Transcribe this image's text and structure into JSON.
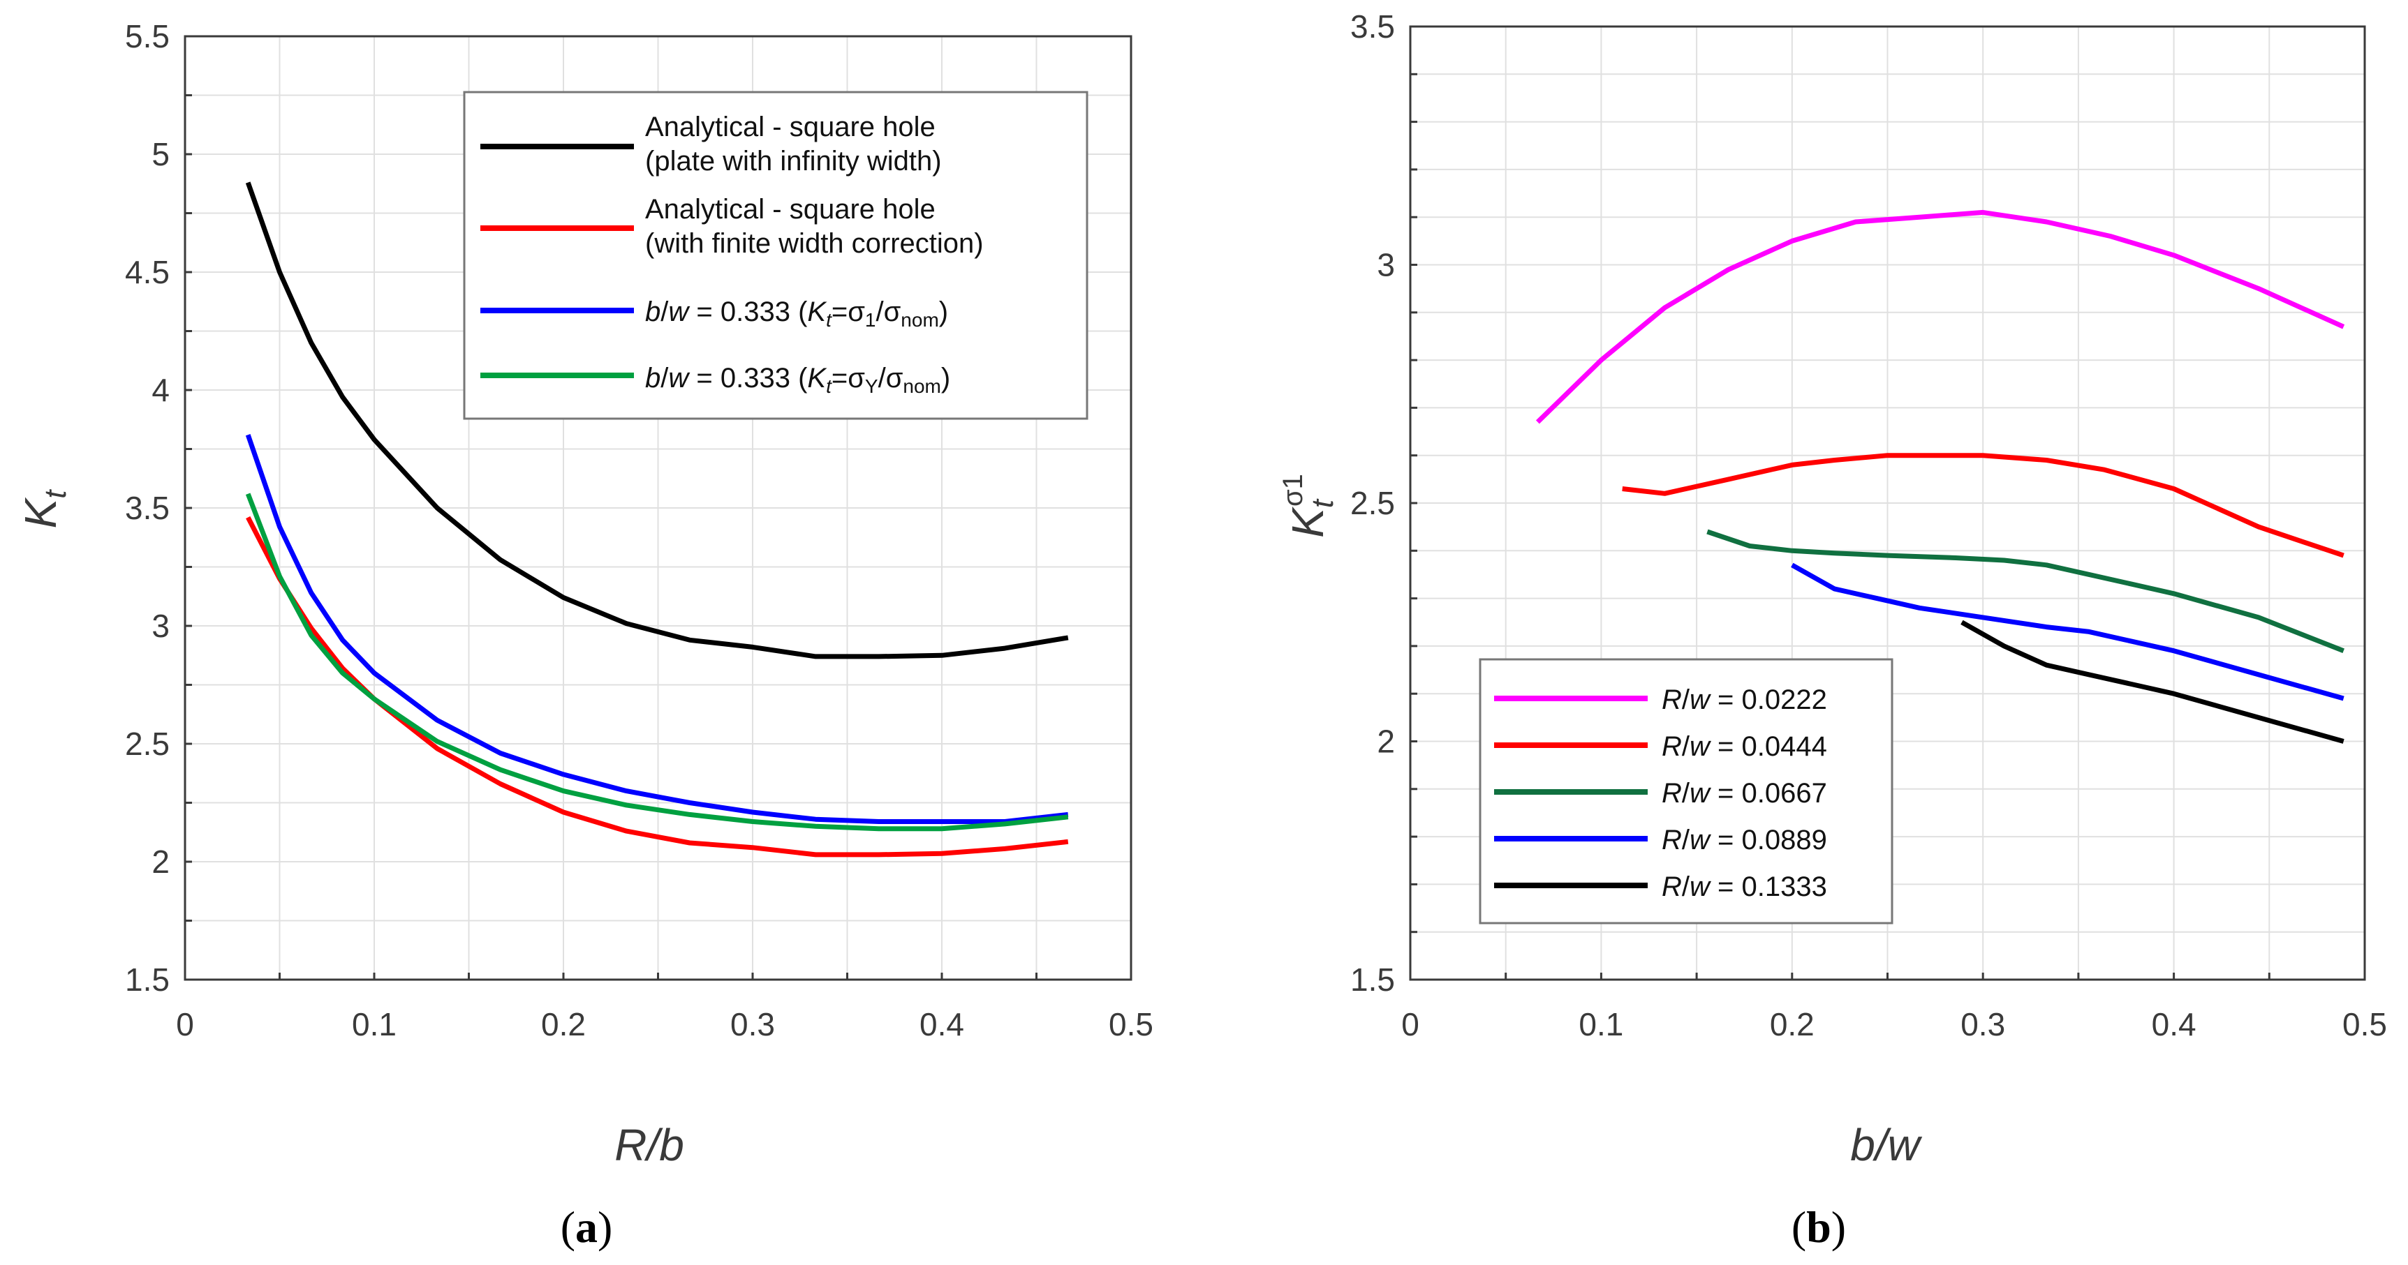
{
  "chart_data": [
    {
      "id": "a",
      "type": "line",
      "caption": "a",
      "xlabel": "R/b",
      "ylabel": "K_t",
      "xlim": [
        0,
        0.5
      ],
      "ylim": [
        1.5,
        5.5
      ],
      "x_ticks": [
        "0",
        "0.1",
        "0.2",
        "0.3",
        "0.4",
        "0.5"
      ],
      "y_ticks": [
        "1.5",
        "2",
        "2.5",
        "3",
        "3.5",
        "4",
        "4.5",
        "5",
        "5.5"
      ],
      "grid": true,
      "legend_position": "top-right",
      "series": [
        {
          "name": "Analytical - square hole (plate with infinity width)",
          "legend_lines": [
            "Analytical - square hole",
            "(plate with infinity width)"
          ],
          "color": "#000000",
          "x": [
            0.0333,
            0.05,
            0.0667,
            0.0833,
            0.1,
            0.1333,
            0.1667,
            0.2,
            0.2333,
            0.2667,
            0.3,
            0.3333,
            0.3667,
            0.4,
            0.4333,
            0.4667
          ],
          "y": [
            4.88,
            4.5,
            4.2,
            3.97,
            3.79,
            3.5,
            3.28,
            3.12,
            3.01,
            2.94,
            2.91,
            2.87,
            2.87,
            2.875,
            2.905,
            2.95
          ]
        },
        {
          "name": "Analytical - square hole (with finite width correction)",
          "legend_lines": [
            "Analytical - square hole",
            "(with finite width correction)"
          ],
          "color": "#ff0000",
          "x": [
            0.0333,
            0.05,
            0.0667,
            0.0833,
            0.1,
            0.1333,
            0.1667,
            0.2,
            0.2333,
            0.2667,
            0.3,
            0.3333,
            0.3667,
            0.4,
            0.4333,
            0.4667
          ],
          "y": [
            3.46,
            3.2,
            2.99,
            2.82,
            2.69,
            2.48,
            2.33,
            2.21,
            2.13,
            2.08,
            2.06,
            2.03,
            2.03,
            2.035,
            2.055,
            2.085
          ]
        },
        {
          "name": "b/w = 0.333 (Kt=σ1/σnom)",
          "legend_lines": [
            "b/w = 0.333 (Kt=σ1/σnom)"
          ],
          "color": "#0000ff",
          "x": [
            0.0333,
            0.05,
            0.0667,
            0.0833,
            0.1,
            0.1333,
            0.1667,
            0.2,
            0.2333,
            0.2667,
            0.3,
            0.3333,
            0.3667,
            0.4,
            0.4333,
            0.4667
          ],
          "y": [
            3.81,
            3.42,
            3.14,
            2.94,
            2.8,
            2.6,
            2.46,
            2.37,
            2.3,
            2.25,
            2.21,
            2.18,
            2.17,
            2.17,
            2.17,
            2.2
          ]
        },
        {
          "name": "b/w = 0.333 (Kt=σY/σnom)",
          "legend_lines": [
            "b/w = 0.333 (Kt=σY/σnom)"
          ],
          "color": "#00a040",
          "x": [
            0.0333,
            0.05,
            0.0667,
            0.0833,
            0.1,
            0.1333,
            0.1667,
            0.2,
            0.2333,
            0.2667,
            0.3,
            0.3333,
            0.3667,
            0.4,
            0.4333,
            0.4667
          ],
          "y": [
            3.56,
            3.21,
            2.96,
            2.8,
            2.69,
            2.51,
            2.39,
            2.3,
            2.24,
            2.2,
            2.17,
            2.15,
            2.14,
            2.14,
            2.16,
            2.19
          ]
        }
      ]
    },
    {
      "id": "b",
      "type": "line",
      "caption": "b",
      "xlabel": "b/w",
      "ylabel": "K_t^σ1",
      "xlim": [
        0,
        0.5
      ],
      "ylim": [
        1.5,
        3.5
      ],
      "x_ticks": [
        "0",
        "0.1",
        "0.2",
        "0.3",
        "0.4",
        "0.5"
      ],
      "y_ticks": [
        "1.5",
        "2",
        "2.5",
        "3",
        "3.5"
      ],
      "grid": true,
      "legend_position": "bottom-left",
      "series": [
        {
          "name": "R/w = 0.0222",
          "legend_lines": [
            "R/w = 0.0222"
          ],
          "color": "#ff00ff",
          "x": [
            0.0667,
            0.1,
            0.1333,
            0.1667,
            0.2,
            0.2333,
            0.2667,
            0.3,
            0.3333,
            0.3667,
            0.4,
            0.4444,
            0.4889
          ],
          "y": [
            2.67,
            2.8,
            2.91,
            2.99,
            3.05,
            3.09,
            3.1,
            3.11,
            3.09,
            3.06,
            3.02,
            2.95,
            2.87
          ]
        },
        {
          "name": "R/w = 0.0444",
          "legend_lines": [
            "R/w = 0.0444"
          ],
          "color": "#ff0000",
          "x": [
            0.1111,
            0.1333,
            0.1667,
            0.2,
            0.2222,
            0.25,
            0.2857,
            0.3,
            0.3333,
            0.3636,
            0.4,
            0.4444,
            0.4889
          ],
          "y": [
            2.53,
            2.52,
            2.55,
            2.58,
            2.59,
            2.6,
            2.6,
            2.6,
            2.59,
            2.57,
            2.53,
            2.45,
            2.39
          ]
        },
        {
          "name": "R/w = 0.0667",
          "legend_lines": [
            "R/w = 0.0667"
          ],
          "color": "#107040",
          "x": [
            0.1556,
            0.1778,
            0.2,
            0.2222,
            0.25,
            0.2857,
            0.3111,
            0.3333,
            0.3556,
            0.3778,
            0.4,
            0.4444,
            0.4889
          ],
          "y": [
            2.44,
            2.41,
            2.4,
            2.395,
            2.39,
            2.385,
            2.38,
            2.37,
            2.35,
            2.33,
            2.31,
            2.26,
            2.19
          ]
        },
        {
          "name": "R/w = 0.0889",
          "legend_lines": [
            "R/w = 0.0889"
          ],
          "color": "#0000ff",
          "x": [
            0.2,
            0.2222,
            0.2444,
            0.2667,
            0.3,
            0.3333,
            0.3556,
            0.3778,
            0.4,
            0.4444,
            0.4889
          ],
          "y": [
            2.37,
            2.32,
            2.3,
            2.28,
            2.26,
            2.24,
            2.23,
            2.21,
            2.19,
            2.14,
            2.09
          ]
        },
        {
          "name": "R/w = 0.1333",
          "legend_lines": [
            "R/w = 0.1333"
          ],
          "color": "#000000",
          "x": [
            0.2889,
            0.3111,
            0.3333,
            0.3556,
            0.3778,
            0.4,
            0.4444,
            0.4889
          ],
          "y": [
            2.25,
            2.2,
            2.16,
            2.14,
            2.12,
            2.1,
            2.05,
            2.0
          ]
        }
      ]
    }
  ]
}
